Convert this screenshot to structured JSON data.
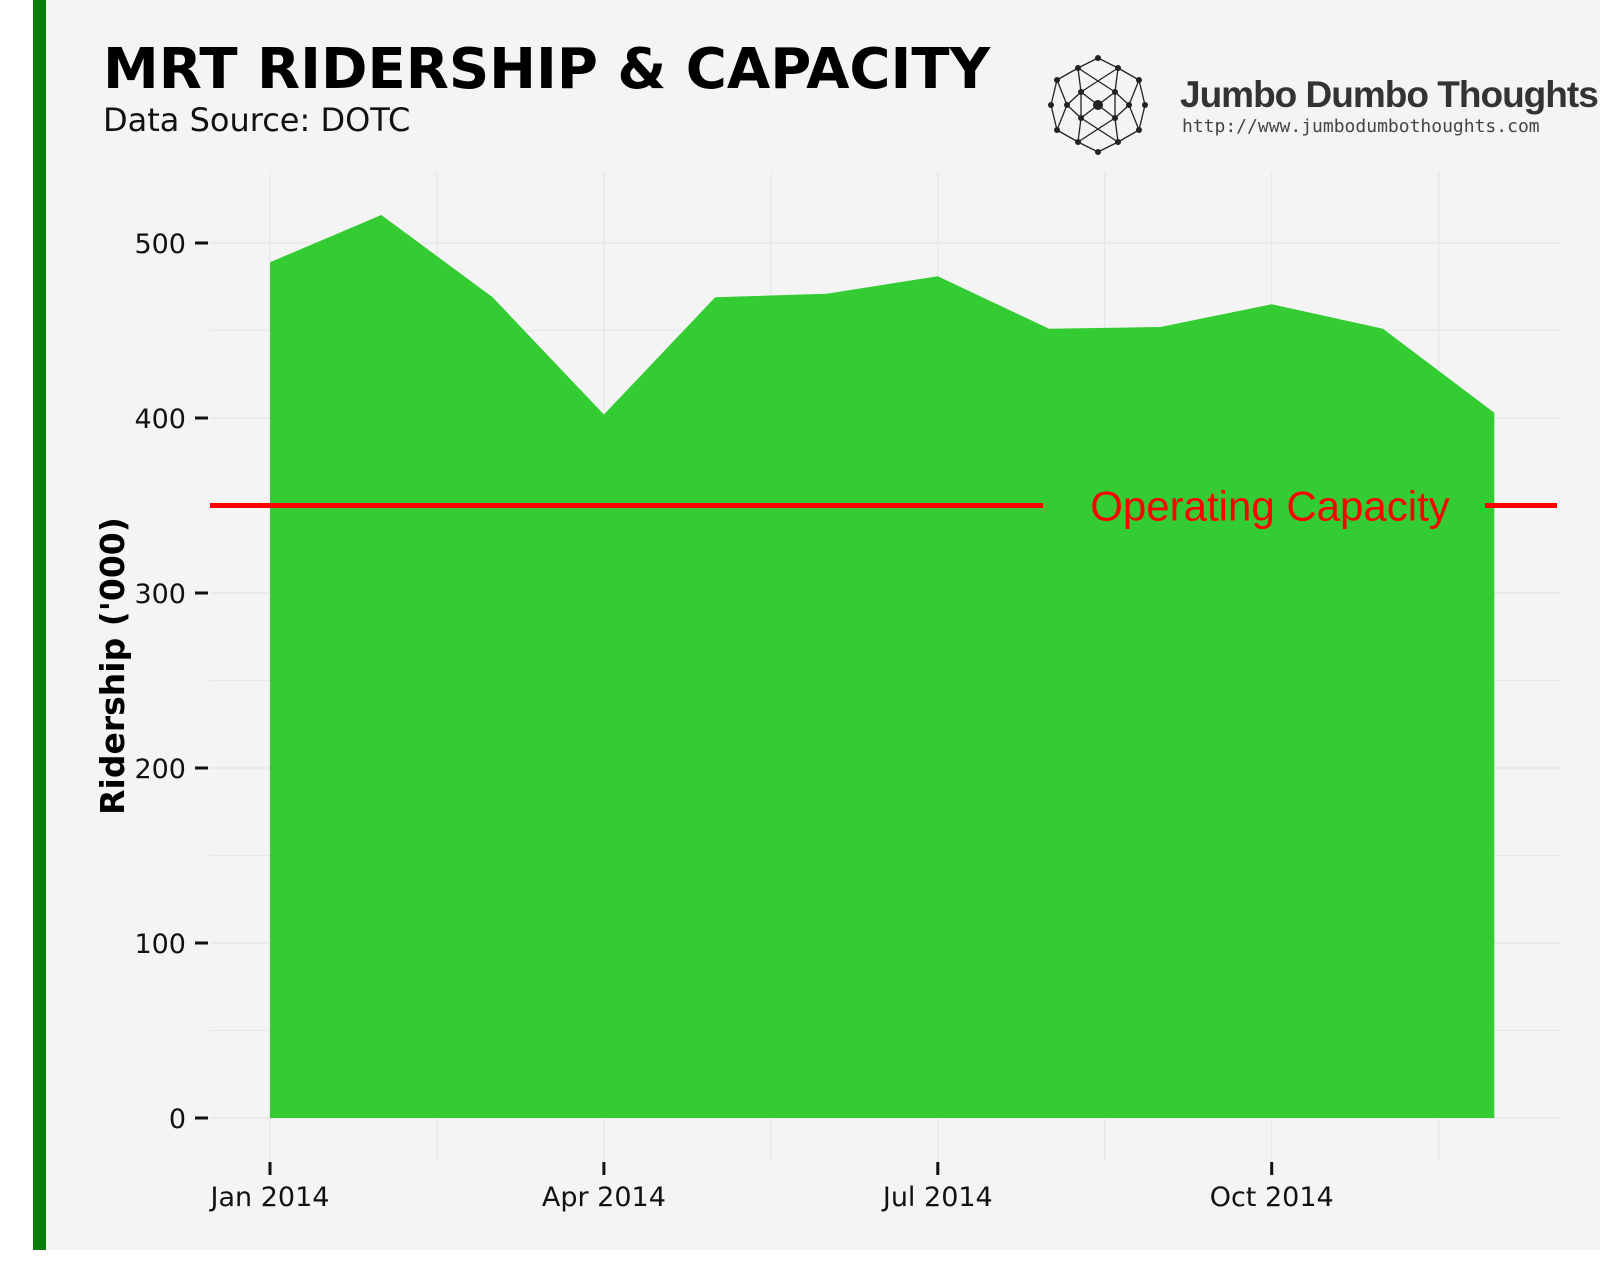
{
  "header": {
    "title": "MRT RIDERSHIP & CAPACITY",
    "subtitle": "Data Source: DOTC"
  },
  "brand": {
    "name": "Jumbo Dumbo Thoughts",
    "url": "http://www.jumbodumbothoughts.com",
    "logo_icon": "network-node-icon"
  },
  "colors": {
    "area_fill": "#33cc33",
    "capacity_line": "#ff0000",
    "left_bar": "#0a7d0a",
    "background": "#f4f4f4"
  },
  "chart_data": {
    "type": "area",
    "title": "MRT RIDERSHIP & CAPACITY",
    "subtitle": "Data Source: DOTC",
    "xlabel": "",
    "ylabel": "Ridership ('000)",
    "x": [
      "2014-01",
      "2014-02",
      "2014-03",
      "2014-04",
      "2014-05",
      "2014-06",
      "2014-07",
      "2014-08",
      "2014-09",
      "2014-10",
      "2014-11",
      "2014-12"
    ],
    "series": [
      {
        "values": [
          489,
          516,
          469,
          402,
          469,
          471,
          481,
          451,
          452,
          465,
          451,
          403
        ]
      }
    ],
    "ylim": [
      0,
      540
    ],
    "yticks": [
      0,
      100,
      200,
      300,
      400,
      500
    ],
    "ytick_labels": [
      "0",
      "100",
      "200",
      "300",
      "400",
      "500"
    ],
    "xticks": [
      "2014-01",
      "2014-04",
      "2014-07",
      "2014-10"
    ],
    "xtick_labels": [
      "Jan 2014",
      "Apr 2014",
      "Jul 2014",
      "Oct 2014"
    ],
    "reference_line": {
      "value": 350,
      "label": "Operating Capacity"
    },
    "grid": true,
    "legend": "none"
  }
}
